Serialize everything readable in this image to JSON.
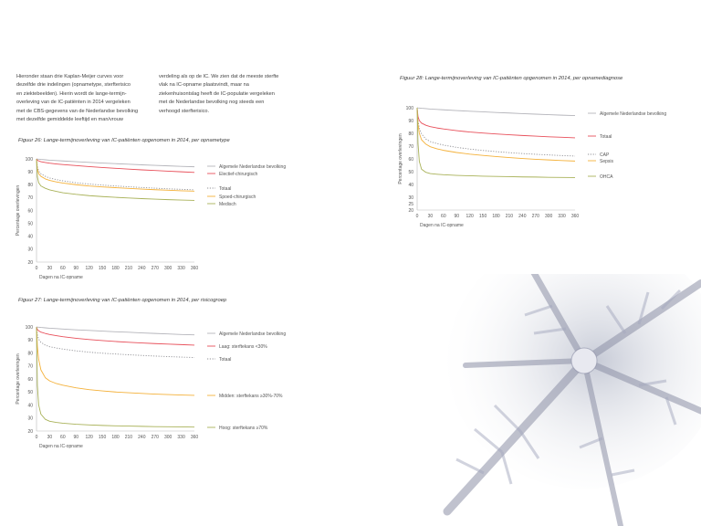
{
  "intro": {
    "left_lines": [
      "Hieronder staan drie Kaplan-Meijer curves voor",
      "dezelfde drie indelingen (opnametype, sterfterisico",
      "en ziektebeelden). Hierin wordt de lange-termijn-",
      "overleving van de IC-patiënten in 2014 vergeleken",
      "met de CBS-gegevens van de Nederlandse bevolking",
      "met dezelfde gemiddelde leeftijd en man/vrouw"
    ],
    "right_lines": [
      "verdeling als op de IC. We zien dat de meeste sterfte",
      "vlak na IC-opname plaatsvindt, maar na",
      "ziekenhuisontslag heeft de IC-populatie vergeleken",
      "met de Nederlandse bevolking nog steeds een",
      "verhoogd sterfterisico."
    ]
  },
  "colors": {
    "gray": "#b5b5bb",
    "red": "#e8505b",
    "dotted": "#8f8f94",
    "orange": "#f4b13a",
    "olive": "#a9b259"
  },
  "chart_data": [
    {
      "id": "fig26",
      "type": "line",
      "title": "Figuur 26: Lange-termijnoverleving van IC-patiënten opgenomen in 2014, per opnametype",
      "xlabel": "Dagen na IC-opname",
      "ylabel": "Percentage overlevingen",
      "xlim": [
        0,
        360
      ],
      "ylim": [
        20,
        100
      ],
      "xticks": [
        0,
        30,
        60,
        90,
        120,
        150,
        180,
        210,
        240,
        270,
        300,
        330,
        360
      ],
      "yticks": [
        20,
        30,
        40,
        50,
        60,
        70,
        80,
        90,
        100
      ],
      "grid": false,
      "legend_position": "right",
      "x": [
        0,
        2,
        5,
        10,
        20,
        30,
        45,
        60,
        90,
        120,
        150,
        180,
        210,
        240,
        270,
        300,
        330,
        360
      ],
      "series": [
        {
          "name": "Algemele Nederlandse bevolking",
          "style": "solid",
          "color": "#b5b5bb",
          "values": [
            100,
            99.9,
            99.8,
            99.6,
            99.3,
            99,
            98.7,
            98.4,
            97.8,
            97.3,
            96.8,
            96.3,
            95.9,
            95.4,
            95,
            94.6,
            94.2,
            93.9
          ]
        },
        {
          "name": "Electief-chirurgisch",
          "style": "solid",
          "color": "#e8505b",
          "values": [
            100,
            99,
            98.4,
            97.8,
            97.2,
            96.7,
            96.1,
            95.6,
            94.8,
            94,
            93.3,
            92.7,
            92.1,
            91.5,
            91,
            90.5,
            90,
            89.5
          ]
        },
        {
          "name": "Totaal",
          "style": "dotted",
          "color": "#8f8f94",
          "values": [
            100,
            94,
            90.5,
            88.5,
            86.5,
            85.2,
            84,
            83,
            81.5,
            80.5,
            79.7,
            79,
            78.4,
            77.8,
            77.3,
            76.8,
            76.4,
            76
          ]
        },
        {
          "name": "Spoed-chirurgisch",
          "style": "solid",
          "color": "#f4b13a",
          "values": [
            100,
            92,
            88.5,
            86.5,
            84.5,
            83.3,
            82.2,
            81.3,
            80,
            79,
            78.3,
            77.7,
            77.1,
            76.6,
            76.1,
            75.7,
            75.3,
            75
          ]
        },
        {
          "name": "Medisch",
          "style": "solid",
          "color": "#a9b259",
          "values": [
            100,
            86,
            81.5,
            79,
            77.2,
            76,
            74.8,
            73.8,
            72.5,
            71.5,
            70.8,
            70.2,
            69.7,
            69.2,
            68.8,
            68.4,
            68.1,
            67.8
          ]
        }
      ]
    },
    {
      "id": "fig27",
      "type": "line",
      "title": "Figuur 27: Lange-termijnoverleving van IC-patiënten opgenomen in 2014, per risicogroep",
      "xlabel": "Dagen na IC-opname",
      "ylabel": "Percentage overlevingen",
      "xlim": [
        0,
        360
      ],
      "ylim": [
        20,
        100
      ],
      "xticks": [
        0,
        30,
        60,
        90,
        120,
        150,
        180,
        210,
        240,
        270,
        300,
        330,
        360
      ],
      "yticks": [
        20,
        30,
        40,
        50,
        60,
        70,
        80,
        90,
        100
      ],
      "grid": false,
      "legend_position": "right",
      "x": [
        0,
        2,
        5,
        10,
        20,
        30,
        45,
        60,
        90,
        120,
        150,
        180,
        210,
        240,
        270,
        300,
        330,
        360
      ],
      "series": [
        {
          "name": "Algemele Nederlandse bevolking",
          "style": "solid",
          "color": "#b5b5bb",
          "values": [
            100,
            99.9,
            99.8,
            99.6,
            99.3,
            99,
            98.7,
            98.4,
            97.8,
            97.3,
            96.8,
            96.3,
            95.9,
            95.4,
            95,
            94.6,
            94.2,
            93.9
          ]
        },
        {
          "name": "Laag: sterftekans <30%",
          "style": "solid",
          "color": "#e8505b",
          "values": [
            100,
            98,
            97,
            96,
            95,
            94.2,
            93.3,
            92.5,
            91.3,
            90.3,
            89.5,
            88.8,
            88.2,
            87.7,
            87.2,
            86.8,
            86.4,
            86
          ]
        },
        {
          "name": "Totaal",
          "style": "dotted",
          "color": "#8f8f94",
          "values": [
            100,
            94,
            90.5,
            88.2,
            86,
            84.8,
            83.8,
            83,
            81.6,
            80.6,
            79.8,
            79.2,
            78.6,
            78.1,
            77.6,
            77.2,
            76.8,
            76.5
          ]
        },
        {
          "name": "Midden: sterftekans ≥30%-70%",
          "style": "solid",
          "color": "#f4b13a",
          "values": [
            100,
            85,
            75,
            67,
            61,
            58.5,
            56.5,
            55.2,
            53.2,
            51.8,
            50.8,
            50,
            49.4,
            48.9,
            48.4,
            48,
            47.7,
            47.4
          ]
        },
        {
          "name": "Hoog: sterftekans ≥70%",
          "style": "solid",
          "color": "#a9b259",
          "values": [
            100,
            55,
            40,
            33,
            29,
            27.5,
            26.6,
            26,
            25.2,
            24.7,
            24.3,
            24,
            23.8,
            23.6,
            23.4,
            23.3,
            23.2,
            23
          ]
        }
      ]
    },
    {
      "id": "fig28",
      "type": "line",
      "title": "Figuur 28: Lange-termijnoverleving van IC-patiënten opgenomen in 2014, per opnamediagnose",
      "xlabel": "Dagen na IC-opname",
      "ylabel": "Percentage overlevingen",
      "xlim": [
        0,
        360
      ],
      "ylim": [
        20,
        100
      ],
      "xticks": [
        0,
        30,
        60,
        90,
        120,
        150,
        180,
        210,
        240,
        270,
        300,
        330,
        360
      ],
      "yticks": [
        20,
        25,
        30,
        40,
        50,
        60,
        70,
        80,
        90,
        100
      ],
      "grid": false,
      "legend_position": "right",
      "x": [
        0,
        2,
        5,
        10,
        20,
        30,
        45,
        60,
        90,
        120,
        150,
        180,
        210,
        240,
        270,
        300,
        330,
        360
      ],
      "series": [
        {
          "name": "Algemele Nederlandse bevolking",
          "style": "solid",
          "color": "#b5b5bb",
          "values": [
            100,
            99.9,
            99.8,
            99.6,
            99.3,
            99,
            98.7,
            98.4,
            97.8,
            97.3,
            96.8,
            96.3,
            95.9,
            95.4,
            95,
            94.6,
            94.2,
            93.9
          ]
        },
        {
          "name": "Totaal",
          "style": "solid",
          "color": "#e8505b",
          "values": [
            100,
            93,
            90,
            88,
            86.3,
            85.2,
            84.2,
            83.4,
            82.1,
            81,
            80.2,
            79.5,
            78.9,
            78.3,
            77.8,
            77.3,
            76.9,
            76.5
          ]
        },
        {
          "name": "CAP",
          "style": "dotted",
          "color": "#8f8f94",
          "values": [
            100,
            90,
            84,
            79.5,
            75.5,
            73.5,
            72,
            70.8,
            69,
            67.7,
            66.6,
            65.7,
            64.9,
            64.2,
            63.6,
            63.1,
            62.6,
            62.2
          ]
        },
        {
          "name": "Sepsis",
          "style": "solid",
          "color": "#f4b13a",
          "values": [
            100,
            87,
            80,
            75,
            71.5,
            69.5,
            67.9,
            66.7,
            65,
            63.7,
            62.7,
            61.8,
            61,
            60.3,
            59.7,
            59.2,
            58.7,
            58.3
          ]
        },
        {
          "name": "OHCA",
          "style": "solid",
          "color": "#a9b259",
          "values": [
            100,
            72,
            58,
            52,
            49.5,
            48.5,
            48,
            47.6,
            47.1,
            46.8,
            46.5,
            46.3,
            46.1,
            45.9,
            45.8,
            45.6,
            45.5,
            45.4
          ]
        }
      ]
    }
  ]
}
